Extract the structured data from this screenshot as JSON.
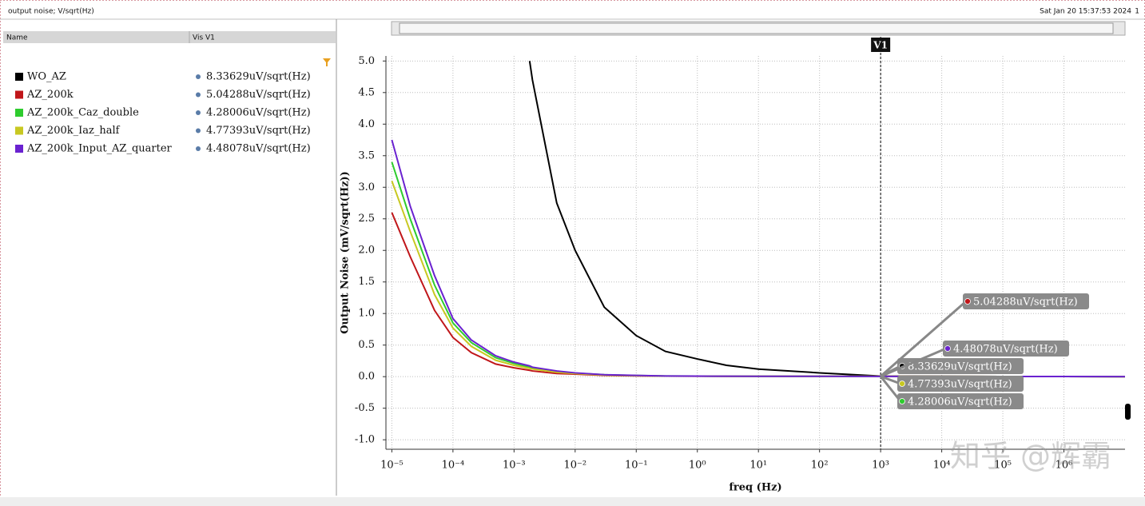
{
  "header": {
    "title": "output noise; V/sqrt(Hz)",
    "timestamp": "Sat Jan 20 15:37:53 2024",
    "page": "1"
  },
  "panel": {
    "columns": [
      "Name",
      "Vis V1"
    ]
  },
  "watermark": "知乎 @辉霸",
  "chart_data": {
    "type": "line",
    "xlabel": "freq (Hz)",
    "ylabel": "Output Noise (mV/sqrt(Hz))",
    "xscale": "log",
    "grid": true,
    "x": [
      1e-05,
      2e-05,
      5e-05,
      0.0001,
      0.0002,
      0.0005,
      0.001,
      0.0018,
      0.002,
      0.005,
      0.01,
      0.03,
      0.1,
      0.3,
      1,
      3,
      10,
      100,
      1000,
      10000,
      100000,
      1000000,
      10000000
    ],
    "xlim": [
      8e-06,
      10000000
    ],
    "xticks": [
      {
        "value": 1e-05,
        "label": "10⁻⁵"
      },
      {
        "value": 0.0001,
        "label": "10⁻⁴"
      },
      {
        "value": 0.001,
        "label": "10⁻³"
      },
      {
        "value": 0.01,
        "label": "10⁻²"
      },
      {
        "value": 0.1,
        "label": "10⁻¹"
      },
      {
        "value": 1,
        "label": "10⁰"
      },
      {
        "value": 10,
        "label": "10¹"
      },
      {
        "value": 100,
        "label": "10²"
      },
      {
        "value": 1000,
        "label": "10³"
      },
      {
        "value": 10000,
        "label": "10⁴"
      },
      {
        "value": 100000,
        "label": "10⁵"
      },
      {
        "value": 1000000,
        "label": "10⁶"
      }
    ],
    "ylim": [
      -1.15,
      5.08
    ],
    "yticks": [
      {
        "value": -1,
        "label": "-1.0"
      },
      -0.5,
      {
        "value": 0,
        "label": "0.0"
      },
      0.5,
      {
        "value": 1,
        "label": "1.0"
      },
      1.5,
      {
        "value": 2,
        "label": "2.0"
      },
      2.5,
      {
        "value": 3,
        "label": "3.0"
      },
      3.5,
      {
        "value": 4,
        "label": "4.0"
      },
      4.5,
      {
        "value": 5,
        "label": "5.0"
      }
    ],
    "cursor": {
      "x": 1000,
      "label": "V1"
    },
    "series": [
      {
        "name": "WO_AZ",
        "color": "#000000",
        "cursor_label": "8.33629uV/sqrt(Hz)",
        "values": [
          null,
          null,
          null,
          null,
          null,
          null,
          null,
          5.0,
          4.7,
          2.75,
          2.0,
          1.1,
          0.65,
          0.4,
          0.28,
          0.18,
          0.12,
          0.06,
          0.00833629,
          0.005,
          0.003,
          0.002,
          0.001
        ]
      },
      {
        "name": "AZ_200k",
        "color": "#c0161a",
        "cursor_label": "5.04288uV/sqrt(Hz)",
        "values": [
          2.6,
          1.9,
          1.05,
          0.62,
          0.38,
          0.2,
          0.14,
          0.1,
          0.09,
          0.05,
          0.04,
          0.02,
          0.012,
          0.008,
          0.007,
          0.006,
          0.006,
          0.005,
          0.00504288,
          0.004,
          0.003,
          0.002,
          0.001
        ]
      },
      {
        "name": "AZ_200k_Caz_double",
        "color": "#2ecc2e",
        "cursor_label": "4.28006uV/sqrt(Hz)",
        "values": [
          3.4,
          2.5,
          1.45,
          0.85,
          0.54,
          0.3,
          0.21,
          0.15,
          0.14,
          0.08,
          0.055,
          0.03,
          0.018,
          0.01,
          0.008,
          0.007,
          0.006,
          0.005,
          0.00428006,
          0.004,
          0.003,
          0.002,
          0.001
        ]
      },
      {
        "name": "AZ_200k_Iaz_half",
        "color": "#c8c822",
        "cursor_label": "4.77393uV/sqrt(Hz)",
        "values": [
          3.1,
          2.3,
          1.3,
          0.77,
          0.48,
          0.26,
          0.18,
          0.13,
          0.12,
          0.07,
          0.05,
          0.025,
          0.015,
          0.009,
          0.008,
          0.007,
          0.006,
          0.005,
          0.00477393,
          0.004,
          0.003,
          0.002,
          0.001
        ]
      },
      {
        "name": "AZ_200k_Input_AZ_quarter",
        "color": "#6a22d0",
        "cursor_label": "4.48078uV/sqrt(Hz)",
        "values": [
          3.75,
          2.7,
          1.6,
          0.92,
          0.58,
          0.33,
          0.23,
          0.17,
          0.15,
          0.09,
          0.06,
          0.03,
          0.02,
          0.01,
          0.008,
          0.007,
          0.006,
          0.005,
          0.00448078,
          0.004,
          0.003,
          0.002,
          0.001
        ]
      }
    ]
  }
}
